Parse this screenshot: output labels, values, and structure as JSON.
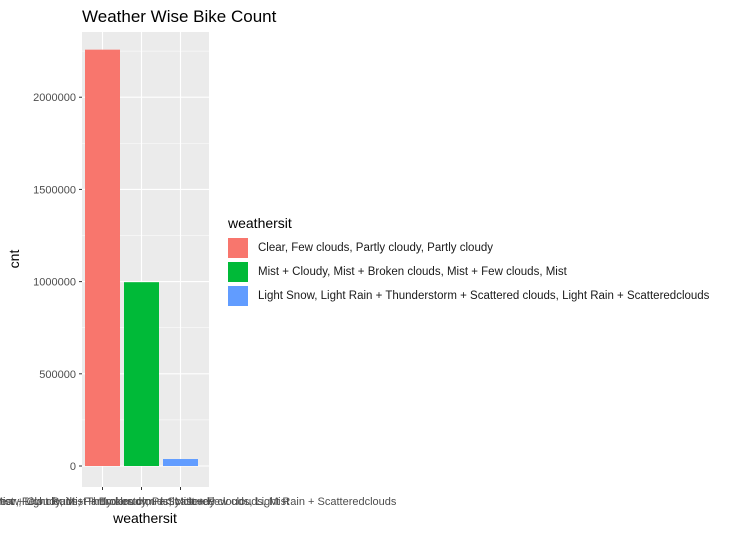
{
  "chart_data": {
    "type": "bar",
    "title": "Weather Wise Bike Count",
    "xlabel": "weathersit",
    "ylabel": "cnt",
    "categories": [
      "Clear, Few clouds, Partly cloudy, Partly cloudy",
      "Mist + Cloudy, Mist + Broken clouds, Mist + Few clouds, Mist",
      "Light Snow, Light Rain + Thunderstorm + Scattered clouds, Light Rain + Scatteredclouds"
    ],
    "values": [
      2257952,
      996858,
      37869
    ],
    "colors": [
      "#F8766D",
      "#00BA38",
      "#619CFF"
    ],
    "ylim": [
      0,
      2370000
    ],
    "yticks": [
      0,
      500000,
      1000000,
      1500000,
      2000000
    ],
    "ytick_labels": [
      "0",
      "500000",
      "1000000",
      "1500000",
      "2000000"
    ],
    "grid": true,
    "panel_background": "#EBEBEB",
    "legend": {
      "title": "weathersit",
      "placement": "right",
      "entries": [
        "Clear, Few clouds, Partly cloudy, Partly cloudy",
        "Mist + Cloudy, Mist + Broken clouds, Mist + Few clouds, Mist",
        "Light Snow, Light Rain + Thunderstorm + Scattered clouds, Light Rain + Scatteredclouds"
      ]
    }
  }
}
